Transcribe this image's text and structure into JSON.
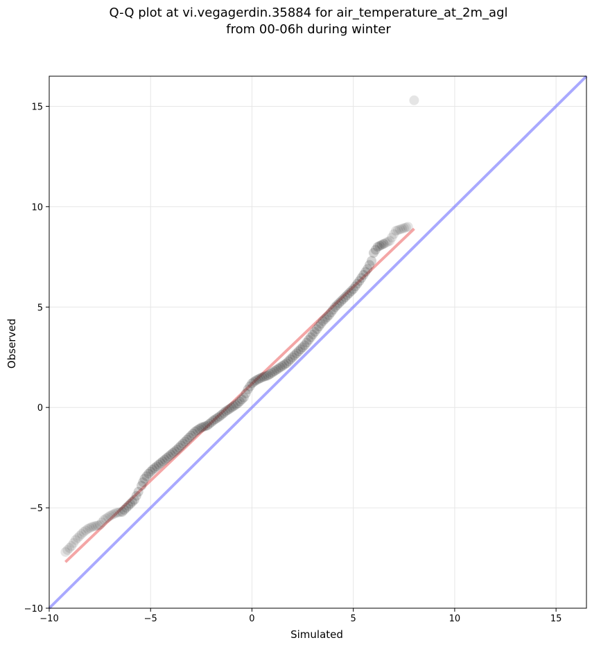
{
  "chart_data": {
    "type": "scatter",
    "title_lines": [
      "Q-Q plot at vi.vegagerdin.35884 for air_temperature_at_2m_agl",
      "from 00-06h during winter"
    ],
    "xlabel": "Simulated",
    "ylabel": "Observed",
    "xlim": [
      -10,
      16.5
    ],
    "ylim": [
      -10,
      16.5
    ],
    "xticks": [
      -10,
      -5,
      0,
      5,
      10,
      15
    ],
    "yticks": [
      -10,
      -5,
      0,
      5,
      10,
      15
    ],
    "xtick_labels": [
      "−10",
      "−5",
      "0",
      "5",
      "10",
      "15"
    ],
    "ytick_labels": [
      "−10",
      "−5",
      "0",
      "5",
      "10",
      "15"
    ],
    "grid": true,
    "colors": {
      "points": "#333333",
      "fit_line": "#f08080",
      "identity_line": "#7b7bff",
      "grid": "#e6e6e6"
    },
    "identity_line": {
      "x": [
        -10,
        16.5
      ],
      "y": [
        -10,
        16.5
      ]
    },
    "fit_line": {
      "x": [
        -9.2,
        8.0
      ],
      "y": [
        -7.7,
        8.9
      ]
    },
    "quantile_curve": {
      "x": [
        -9.2,
        -8.9,
        -8.7,
        -8.5,
        -8.3,
        -8.1,
        -7.9,
        -7.5,
        -7.3,
        -7.0,
        -6.7,
        -6.4,
        -6.1,
        -5.8,
        -5.6,
        -5.45,
        -5.3,
        -5.1,
        -4.9,
        -4.6,
        -4.3,
        -4.0,
        -3.7,
        -3.4,
        -3.1,
        -2.8,
        -2.5,
        -2.2,
        -1.9,
        -1.6,
        -1.3,
        -1.0,
        -0.7,
        -0.4,
        -0.2,
        0.0,
        0.2,
        0.5,
        0.8,
        1.1,
        1.4,
        1.7,
        2.0,
        2.3,
        2.6,
        2.9,
        3.2,
        3.5,
        3.8,
        4.1,
        4.4,
        4.7,
        5.0,
        5.3,
        5.5,
        5.7,
        5.9,
        6.0,
        6.2,
        6.4,
        6.6,
        6.8,
        7.1,
        7.7,
        8.0
      ],
      "y": [
        -7.2,
        -6.9,
        -6.6,
        -6.4,
        -6.2,
        -6.05,
        -5.95,
        -5.85,
        -5.6,
        -5.4,
        -5.25,
        -5.2,
        -4.9,
        -4.6,
        -4.2,
        -3.9,
        -3.55,
        -3.3,
        -3.1,
        -2.85,
        -2.6,
        -2.35,
        -2.1,
        -1.8,
        -1.5,
        -1.2,
        -1.0,
        -0.9,
        -0.65,
        -0.45,
        -0.2,
        0.0,
        0.2,
        0.5,
        0.9,
        1.2,
        1.35,
        1.5,
        1.6,
        1.8,
        2.0,
        2.2,
        2.5,
        2.8,
        3.1,
        3.5,
        3.9,
        4.3,
        4.6,
        5.0,
        5.3,
        5.6,
        5.9,
        6.3,
        6.6,
        6.9,
        7.3,
        7.7,
        8.0,
        8.1,
        8.2,
        8.3,
        8.8,
        9.0,
        15.3
      ]
    }
  }
}
